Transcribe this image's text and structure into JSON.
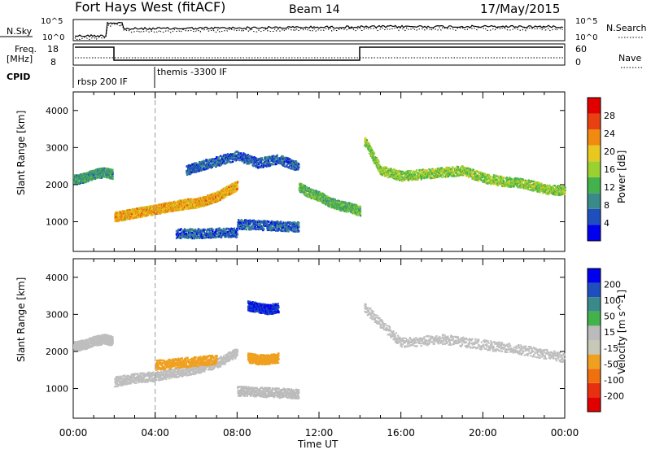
{
  "header": {
    "title": "Fort Hays West (fitACF)",
    "beam": "Beam 14",
    "date": "17/May/2015"
  },
  "labels": {
    "nsky": "N.Sky",
    "nsky_ticks": [
      "10^5",
      "10^0"
    ],
    "nsearch": "N.Search",
    "freq": "Freq.",
    "freq_unit": "[MHz]",
    "freq_ticks": [
      "18",
      "8"
    ],
    "nave": "Nave",
    "nave_ticks": [
      "60",
      "0"
    ],
    "cpid": "CPID",
    "cpid_segments": [
      "rbsp 200 IF",
      "themis -3300 IF"
    ]
  },
  "colors": {
    "power_scale": [
      "#0000ee",
      "#1f4fbf",
      "#3a8a8a",
      "#44b24c",
      "#9ad02f",
      "#e8c820",
      "#f08a10",
      "#e84010",
      "#e00000"
    ],
    "velocity_scale": [
      "#0000ee",
      "#1f4fbf",
      "#3a8a8a",
      "#44b24c",
      "#bbbbbb",
      "#c8c8b8",
      "#f0a020",
      "#f07010",
      "#e83010",
      "#e00000"
    ],
    "ground_scatter": "#bebebe"
  },
  "chart_data": [
    {
      "type": "heatmap",
      "title": "Power",
      "ylabel": "Slant Range [km]",
      "xlabel": "",
      "x_ticks": [
        "00:00",
        "04:00",
        "08:00",
        "12:00",
        "16:00",
        "20:00",
        "00:00"
      ],
      "y_ticks": [
        "1000",
        "2000",
        "3000",
        "4000"
      ],
      "xlim": [
        0,
        24
      ],
      "ylim": [
        200,
        4500
      ],
      "colorbar": {
        "label": "Power [dB]",
        "ticks": [
          "4",
          "8",
          "12",
          "16",
          "20",
          "24",
          "28"
        ],
        "range": [
          0,
          30
        ]
      },
      "series": [
        {
          "x": [
            0,
            0.5,
            1,
            1.5,
            1.9
          ],
          "y": [
            2150,
            2200,
            2300,
            2350,
            2300
          ],
          "value": 10
        },
        {
          "x": [
            2,
            2.5,
            3,
            3.5,
            4,
            4.5,
            5,
            5.5,
            6,
            6.5,
            7,
            7.5,
            8
          ],
          "y": [
            1150,
            1200,
            1250,
            1300,
            1350,
            1400,
            1450,
            1500,
            1520,
            1600,
            1700,
            1850,
            2000
          ],
          "value": 20
        },
        {
          "x": [
            11,
            11.5,
            12,
            12.5,
            13,
            13.5,
            14
          ],
          "y": [
            1950,
            1800,
            1700,
            1550,
            1450,
            1400,
            1300
          ],
          "value": 12
        },
        {
          "x": [
            14.2,
            15,
            16,
            17,
            18,
            19,
            20,
            21,
            22,
            23,
            24
          ],
          "y": [
            3200,
            2400,
            2250,
            2300,
            2350,
            2400,
            2200,
            2100,
            2050,
            1900,
            1850
          ],
          "value": 14
        },
        {
          "x": [
            5.5,
            6,
            7,
            8,
            9,
            10,
            11
          ],
          "y": [
            2400,
            2500,
            2650,
            2800,
            2600,
            2700,
            2500
          ],
          "value": 6
        },
        {
          "x": [
            8,
            9,
            10,
            11
          ],
          "y": [
            950,
            930,
            900,
            880
          ],
          "value": 6
        },
        {
          "x": [
            5,
            6,
            7,
            8
          ],
          "y": [
            700,
            700,
            720,
            720
          ],
          "value": 6
        }
      ]
    },
    {
      "type": "heatmap",
      "title": "Velocity",
      "ylabel": "Slant Range [km]",
      "xlabel": "Time UT",
      "x_ticks": [
        "00:00",
        "04:00",
        "08:00",
        "12:00",
        "16:00",
        "20:00",
        "00:00"
      ],
      "y_ticks": [
        "1000",
        "2000",
        "3000",
        "4000"
      ],
      "xlim": [
        0,
        24
      ],
      "ylim": [
        200,
        4500
      ],
      "colorbar": {
        "label": "Velocity [m s^-1]",
        "ticks": [
          "200",
          "100",
          "50",
          "15",
          "-15",
          "-50",
          "-100",
          "-200"
        ],
        "range": [
          -250,
          250
        ]
      },
      "series": [
        {
          "x": [
            0,
            0.5,
            1,
            1.5,
            1.9
          ],
          "y": [
            2150,
            2200,
            2300,
            2350,
            2300
          ],
          "value": 0
        },
        {
          "x": [
            2,
            3,
            4,
            5,
            6,
            7,
            8
          ],
          "y": [
            1200,
            1300,
            1350,
            1450,
            1550,
            1700,
            2000
          ],
          "value": 0
        },
        {
          "x": [
            4,
            5,
            6,
            7
          ],
          "y": [
            1650,
            1700,
            1750,
            1800
          ],
          "value": -60
        },
        {
          "x": [
            8.5,
            9,
            9.5,
            10
          ],
          "y": [
            3250,
            3200,
            3150,
            3200
          ],
          "value": 200
        },
        {
          "x": [
            8.5,
            9,
            9.5,
            10
          ],
          "y": [
            1850,
            1800,
            1800,
            1850
          ],
          "value": -90
        },
        {
          "x": [
            8,
            9,
            10,
            11
          ],
          "y": [
            950,
            930,
            900,
            880
          ],
          "value": 30
        },
        {
          "x": [
            14.2,
            16,
            18,
            20,
            22,
            24
          ],
          "y": [
            3200,
            2250,
            2350,
            2200,
            2050,
            1850
          ],
          "value": 0
        }
      ]
    }
  ]
}
